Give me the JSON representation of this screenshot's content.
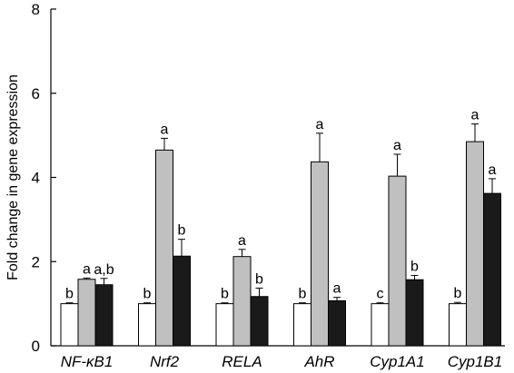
{
  "chart_data": {
    "type": "bar",
    "title": "",
    "xlabel": "",
    "ylabel": "Fold change in gene expression",
    "ylim": [
      0,
      8
    ],
    "yticks": [
      0,
      2,
      4,
      6,
      8
    ],
    "grid": false,
    "categories": [
      "NF-κB1",
      "Nrf2",
      "RELA",
      "AhR",
      "Cyp1A1",
      "Cyp1B1"
    ],
    "series": [
      {
        "color": "#ffffff",
        "values": [
          1.0,
          1.0,
          1.0,
          1.0,
          1.0,
          1.0
        ],
        "errors": [
          0.02,
          0.02,
          0.02,
          0.02,
          0.02,
          0.03
        ],
        "labels": [
          "b",
          "b",
          "b",
          "b",
          "c",
          "b"
        ]
      },
      {
        "color": "#c0c0c0",
        "values": [
          1.58,
          4.65,
          2.12,
          4.37,
          4.03,
          4.85
        ],
        "errors": [
          0.03,
          0.28,
          0.17,
          0.68,
          0.52,
          0.42
        ],
        "labels": [
          "a",
          "a",
          "a",
          "a",
          "a",
          "a"
        ]
      },
      {
        "color": "#1a1a1a",
        "values": [
          1.45,
          2.13,
          1.17,
          1.07,
          1.57,
          3.62
        ],
        "errors": [
          0.15,
          0.4,
          0.2,
          0.08,
          0.1,
          0.35
        ],
        "labels": [
          "a,b",
          "b",
          "b",
          "a",
          "b",
          "a"
        ]
      }
    ]
  }
}
